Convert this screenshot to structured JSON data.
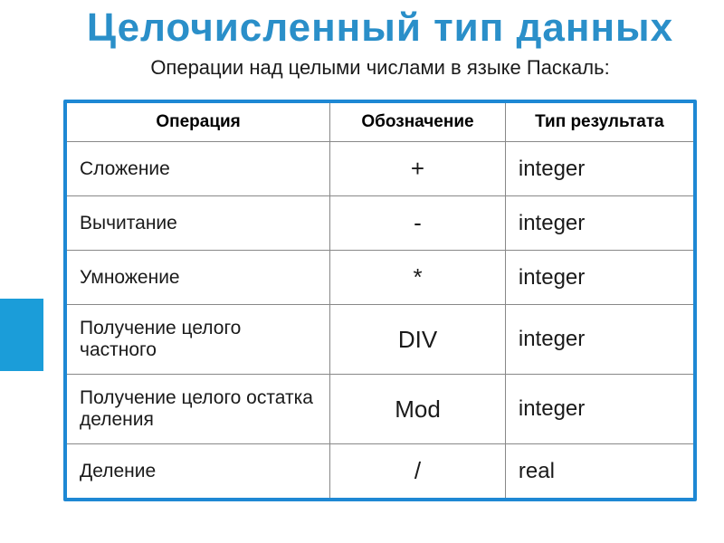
{
  "title": "Целочисленный тип данных",
  "subtitle": "Операции над целыми числами в языке Паскаль:",
  "headers": {
    "operation": "Операция",
    "notation": "Обозначение",
    "resultType": "Тип результата"
  },
  "rows": [
    {
      "operation": "Сложение",
      "notation": "+",
      "resultType": "integer"
    },
    {
      "operation": "Вычитание",
      "notation": "-",
      "resultType": "integer"
    },
    {
      "operation": "Умножение",
      "notation": "*",
      "resultType": "integer"
    },
    {
      "operation": "Получение целого частного",
      "notation": "DIV",
      "resultType": "integer"
    },
    {
      "operation": "Получение целого остатка деления",
      "notation": "Mod",
      "resultType": "integer"
    },
    {
      "operation": "Деление",
      "notation": "/",
      "resultType": "real"
    }
  ],
  "colors": {
    "titleColor": "#2a8fc9",
    "borderColor": "#1e88d4",
    "sidebarColor": "#1b9dd9",
    "textColor": "#1a1a1a",
    "gridColor": "#888888",
    "background": "#ffffff"
  }
}
